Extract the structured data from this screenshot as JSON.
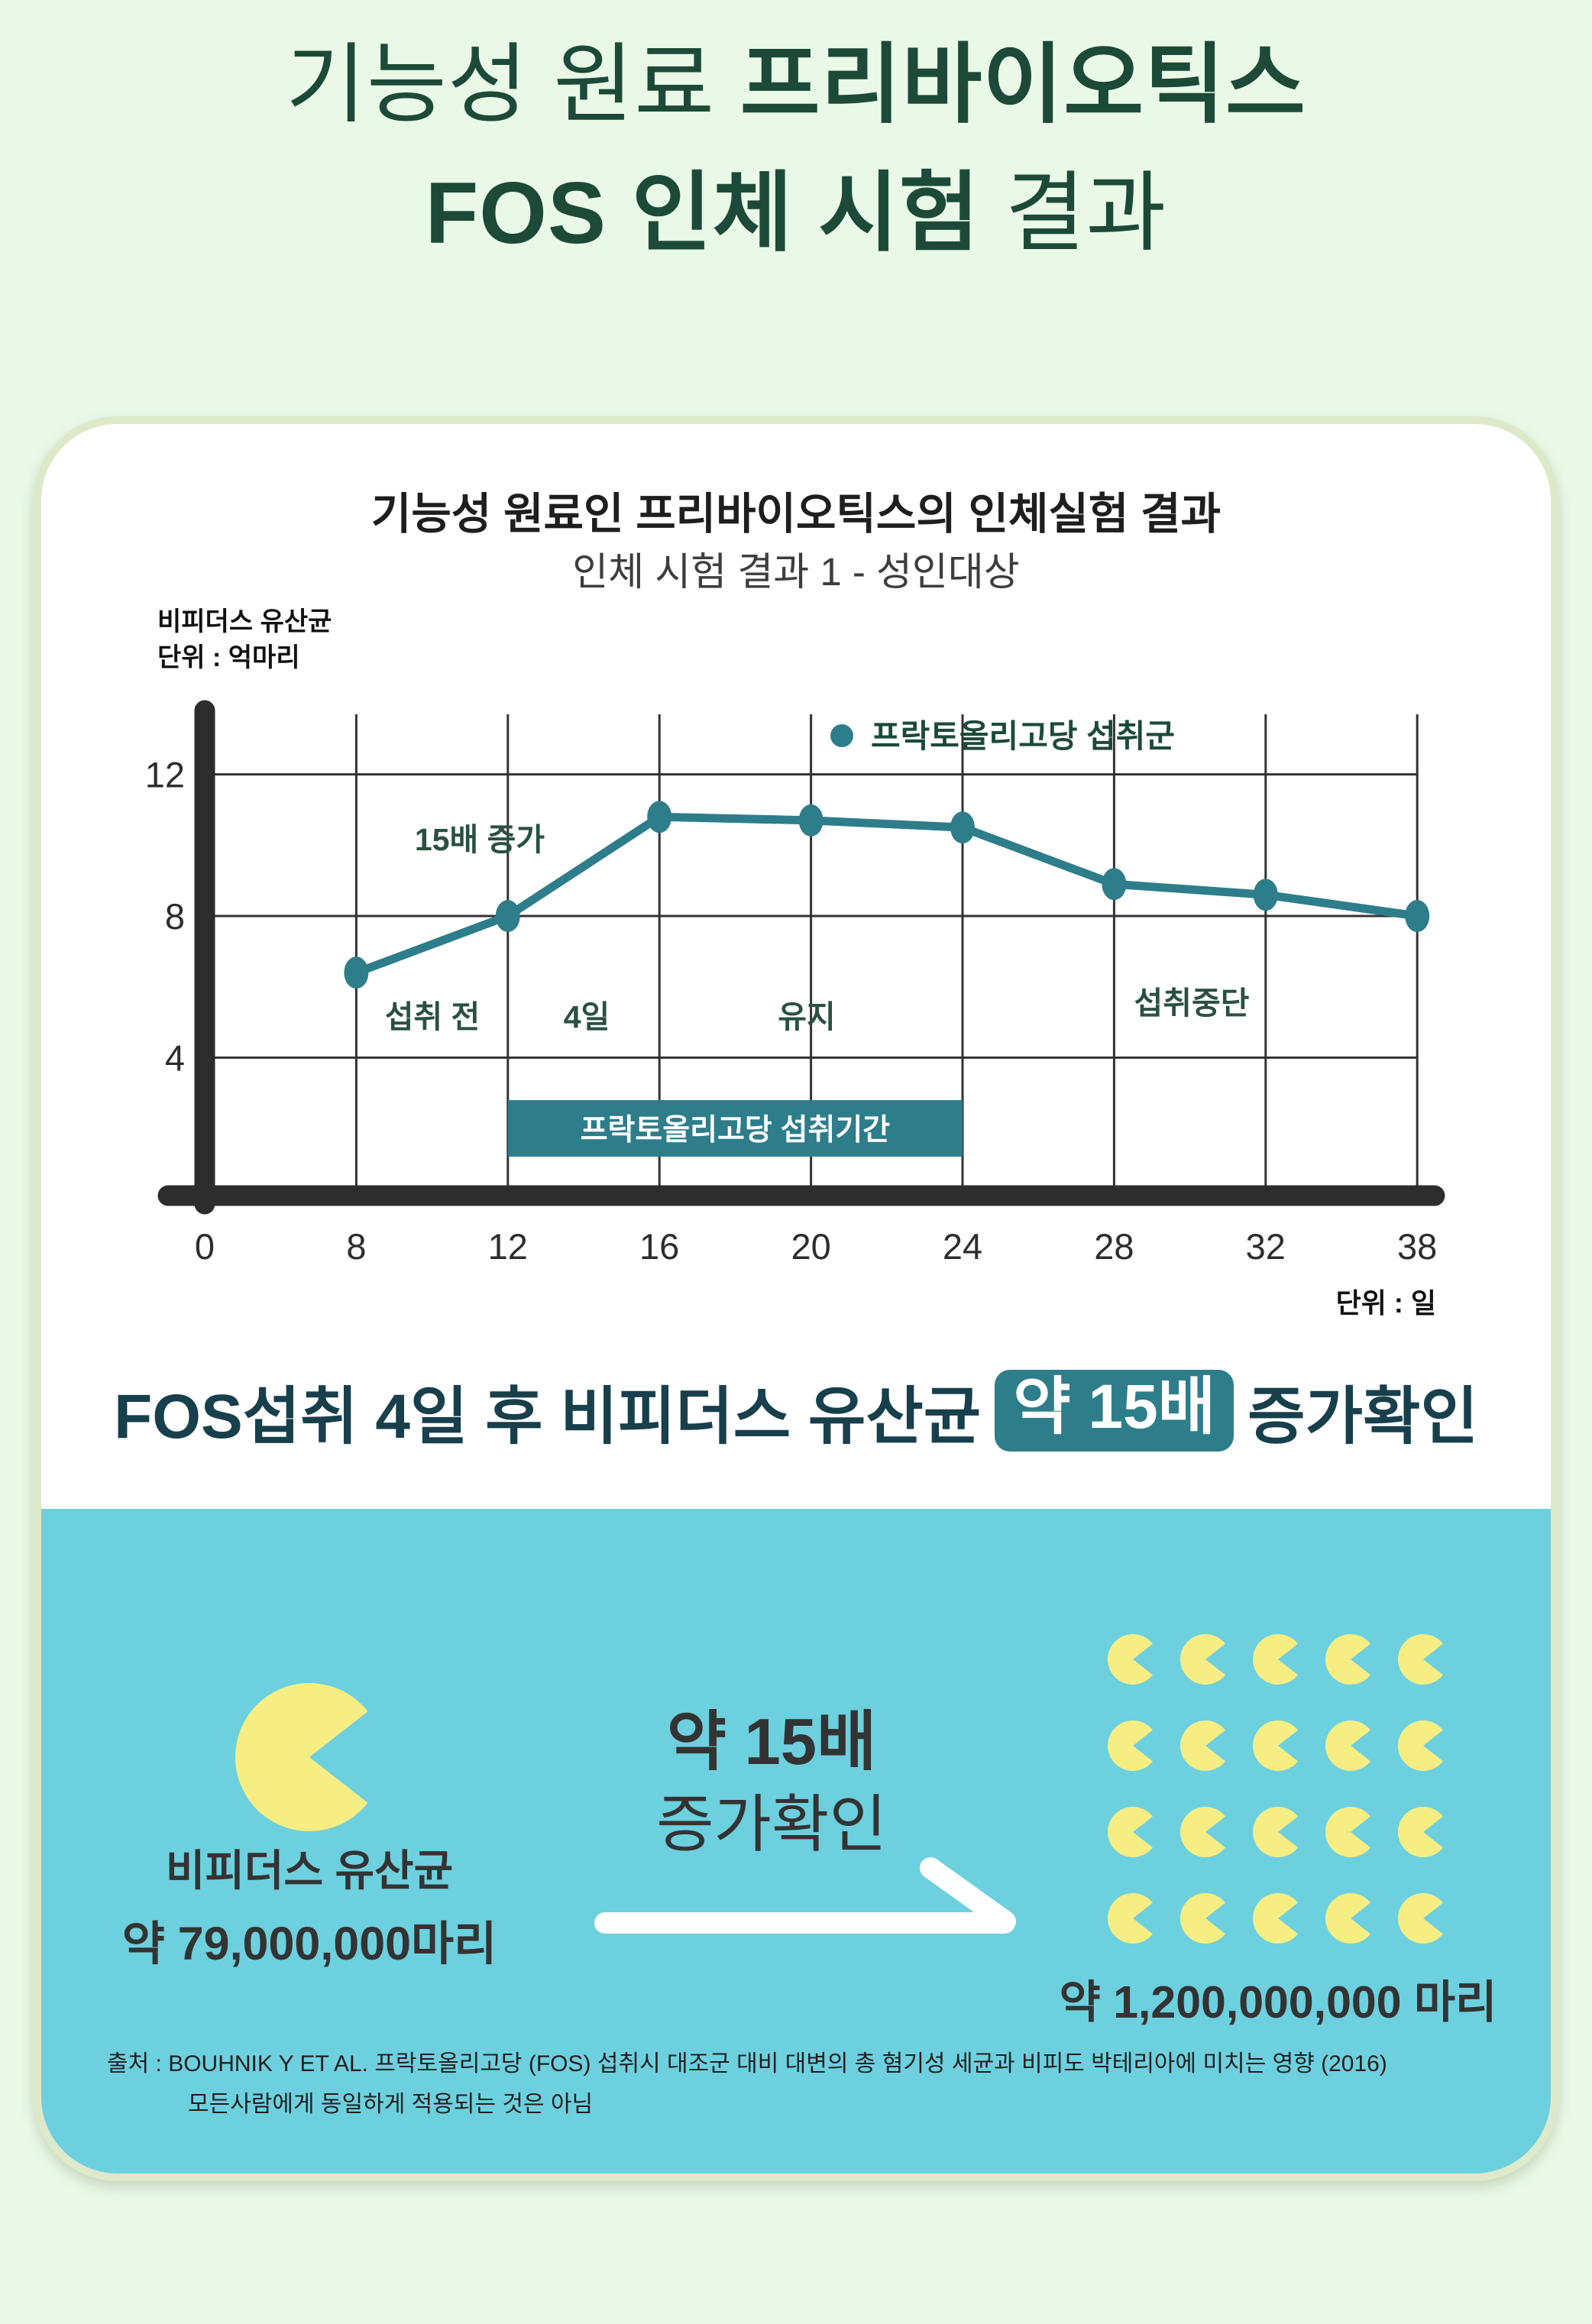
{
  "page": {
    "background": "#e9f8e7"
  },
  "colors": {
    "teal": "#2e7d8b",
    "panel_blue": "#6dd0de",
    "bacteria_yellow": "#f6ee83",
    "title_green": "#1d4a38",
    "headline_navy": "#173f4c",
    "annotation_green": "#2a5140",
    "grid_gray": "#333333",
    "axis_dark": "#2d2d2d",
    "text_dark": "#333333"
  },
  "title": {
    "line1_regular": "기능성 원료 ",
    "line1_bold": "프리바이오틱스",
    "line2_bold": "FOS 인체 시험 ",
    "line2_regular": "결과"
  },
  "chart_data": {
    "type": "line",
    "title": "기능성 원료인 프리바이오틱스의 인체실험 결과",
    "subtitle": "인체 시험 결과 1 - 성인대상",
    "y_axis_label_lines": [
      "비피더스 유산균",
      "단위 : 억마리"
    ],
    "x_axis_unit_label": "단위 : 일",
    "x_ticks": [
      "0",
      "8",
      "12",
      "16",
      "20",
      "24",
      "28",
      "32",
      "38"
    ],
    "y_ticks": [
      12,
      8,
      4
    ],
    "ylim": [
      2,
      14.2
    ],
    "xlabel": "일",
    "ylabel": "비피더스 유산균 (억마리)",
    "grid": true,
    "legend_position": "top-right-inside",
    "series": [
      {
        "name": "프락토올리고당 섭취군",
        "x_days": [
          8,
          12,
          16,
          20,
          24,
          28,
          32,
          38
        ],
        "values": [
          6.4,
          8,
          10.8,
          10.7,
          10.5,
          8.9,
          8.6,
          8
        ]
      }
    ],
    "annotations": [
      "15배 증가",
      "섭취 전",
      "4일",
      "유지",
      "섭취중단"
    ],
    "intake_period_label": "프락토올리고당 섭취기간",
    "intake_period_span_days": [
      12,
      24
    ]
  },
  "headline": {
    "prefix": "FOS섭취 4일 후 비피더스 유산균",
    "highlight": "약 15배",
    "suffix": "증가확인"
  },
  "bottom": {
    "left": {
      "line1": "비피더스 유산균",
      "line2": "약 79,000,000마리"
    },
    "middle": {
      "line1": "약 15배",
      "line2": "증가확인"
    },
    "right": {
      "label": "약 1,200,000,000 마리",
      "icon_grid": {
        "rows": 4,
        "cols": 5
      }
    },
    "source_line1": "출처 : BOUHNIK Y ET AL. 프락토올리고당 (FOS) 섭취시 대조군 대비 대변의 총 혐기성 세균과 비피도 박테리아에 미치는 영향 (2016)",
    "source_line2": "모든사람에게 동일하게 적용되는 것은 아님"
  }
}
